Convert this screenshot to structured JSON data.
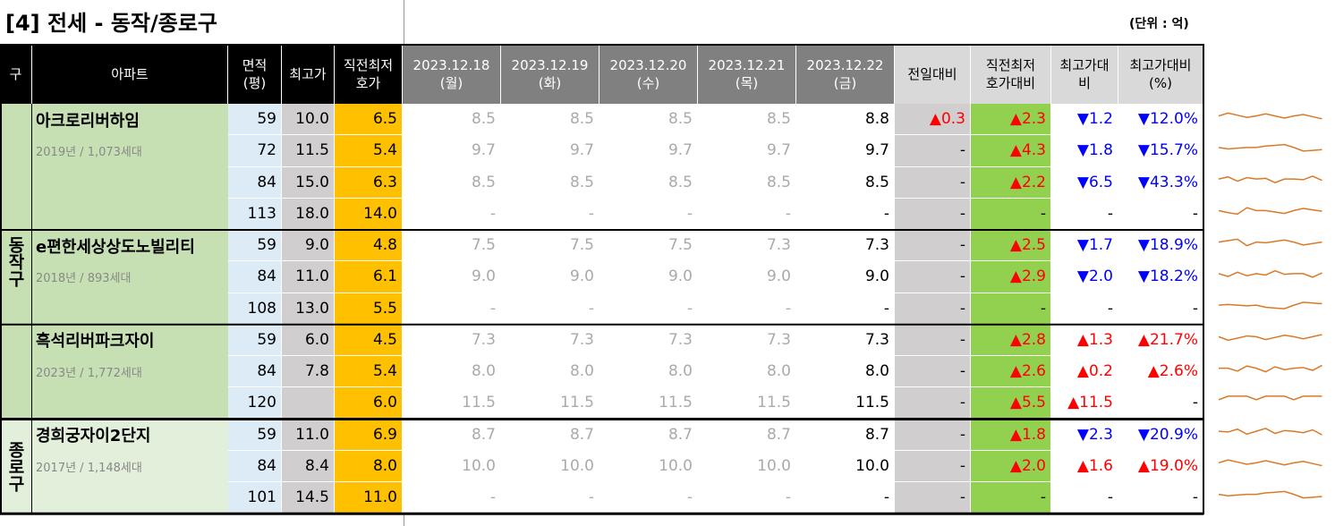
{
  "header": {
    "title": "[4] 전세 - 동작/종로구",
    "unit": "(단위 : 억)"
  },
  "table": {
    "columns": [
      "구",
      "아파트",
      "면적\n(평)",
      "최고가",
      "직전최저\n호가",
      "2023.12.18\n(월)",
      "2023.12.19\n(화)",
      "2023.12.20\n(수)",
      "2023.12.21\n(목)",
      "2023.12.22\n(금)",
      "전일대비",
      "직전최저\n호가대비",
      "최고가대\n비",
      "최고가대비\n(%)"
    ],
    "groups": [
      {
        "district": "동작구",
        "apartments": [
          {
            "name": "아크로리버하임",
            "info": "2019년 / 1,073세대",
            "rows": [
              [
                "59",
                "10.0",
                "6.5",
                "8.5",
                "8.5",
                "8.5",
                "8.5",
                "8.8",
                "▲0.3",
                "▲2.3",
                "▼1.2",
                "▼12.0%"
              ],
              [
                "72",
                "11.5",
                "5.4",
                "9.7",
                "9.7",
                "9.7",
                "9.7",
                "9.7",
                "-",
                "▲4.3",
                "▼1.8",
                "▼15.7%"
              ],
              [
                "84",
                "15.0",
                "6.3",
                "8.5",
                "8.5",
                "8.5",
                "8.5",
                "8.5",
                "-",
                "▲2.2",
                "▼6.5",
                "▼43.3%"
              ],
              [
                "113",
                "18.0",
                "14.0",
                "-",
                "-",
                "-",
                "-",
                "-",
                "-",
                "-",
                "-",
                "-"
              ]
            ]
          },
          {
            "name": "e편한세상상도노빌리티",
            "info": "2018년 / 893세대",
            "rows": [
              [
                "59",
                "9.0",
                "4.8",
                "7.5",
                "7.5",
                "7.5",
                "7.3",
                "7.3",
                "-",
                "▲2.5",
                "▼1.7",
                "▼18.9%"
              ],
              [
                "84",
                "11.0",
                "6.1",
                "9.0",
                "9.0",
                "9.0",
                "9.0",
                "9.0",
                "-",
                "▲2.9",
                "▼2.0",
                "▼18.2%"
              ],
              [
                "108",
                "13.0",
                "5.5",
                "-",
                "-",
                "-",
                "-",
                "-",
                "-",
                "-",
                "-",
                "-"
              ]
            ]
          },
          {
            "name": "흑석리버파크자이",
            "info": "2023년 / 1,772세대",
            "rows": [
              [
                "59",
                "6.0",
                "4.5",
                "7.3",
                "7.3",
                "7.3",
                "7.3",
                "7.3",
                "-",
                "▲2.8",
                "▲1.3",
                "▲21.7%"
              ],
              [
                "84",
                "7.8",
                "5.4",
                "8.0",
                "8.0",
                "8.0",
                "8.0",
                "8.0",
                "-",
                "▲2.6",
                "▲0.2",
                "▲2.6%"
              ],
              [
                "120",
                null,
                "6.0",
                "11.5",
                "11.5",
                "11.5",
                "11.5",
                "11.5",
                "-",
                "▲5.5",
                "▲11.5",
                "-"
              ]
            ]
          }
        ]
      },
      {
        "district": "종로구",
        "apartments": [
          {
            "name": "경희궁자이2단지",
            "info": "2017년 / 1,148세대",
            "rows": [
              [
                "59",
                "11.0",
                "6.9",
                "8.7",
                "8.7",
                "8.7",
                "8.7",
                "8.7",
                "-",
                "▲1.8",
                "▼2.3",
                "▼20.9%"
              ],
              [
                "84",
                "8.4",
                "8.0",
                "10.0",
                "10.0",
                "10.0",
                "10.0",
                "10.0",
                "-",
                "▲2.0",
                "▲1.6",
                "▲19.0%"
              ],
              [
                "101",
                "14.5",
                "11.0",
                "-",
                "-",
                "-",
                "-",
                "-",
                "-",
                "-",
                "-",
                "-"
              ]
            ]
          }
        ]
      }
    ]
  }
}
